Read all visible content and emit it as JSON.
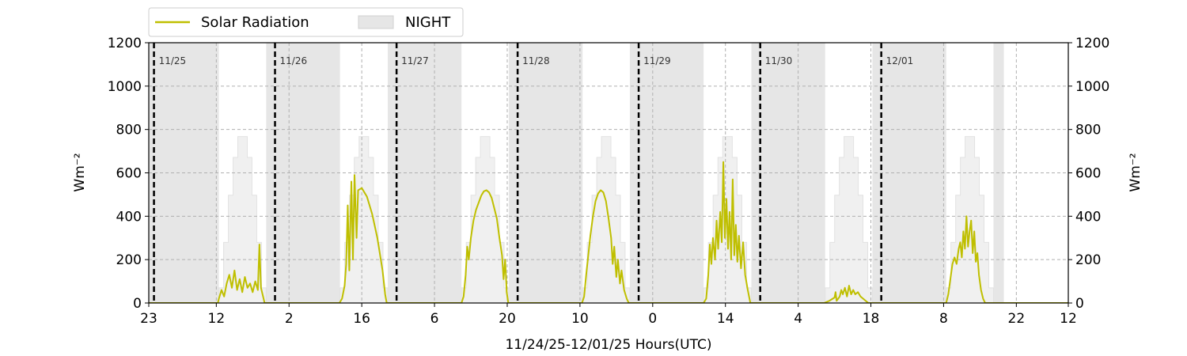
{
  "chart_data": {
    "type": "line",
    "xlabel": "11/24/25-12/01/25  Hours(UTC)",
    "ylabel_left": "Wm⁻²",
    "ylabel_right": "Wm⁻²",
    "ylim": [
      0,
      1200
    ],
    "y_ticks": [
      "0",
      "200",
      "400",
      "600",
      "800",
      "1000",
      "1200"
    ],
    "xlim_hours": [
      0,
      177
    ],
    "x_tick_hours": [
      0,
      13,
      27,
      41,
      55,
      69,
      83,
      97,
      111,
      125,
      139,
      153,
      167,
      177
    ],
    "x_tick_labels": [
      "23",
      "12",
      "2",
      "16",
      "6",
      "20",
      "10",
      "0",
      "14",
      "4",
      "18",
      "8",
      "22",
      "12"
    ],
    "grid": "dashed",
    "legend": {
      "placement": "top-left-outside",
      "solar_label": "Solar Radiation",
      "night_label": "NIGHT"
    },
    "colors": {
      "solar": "#bfbf00",
      "night": "#e6e6e6",
      "clear_sky": "#f0f0f0",
      "day_marker": "#000000"
    },
    "day_markers": [
      {
        "hour": 1,
        "label": "11/25"
      },
      {
        "hour": 24.3,
        "label": "11/26"
      },
      {
        "hour": 47.7,
        "label": "11/27"
      },
      {
        "hour": 71,
        "label": "11/28"
      },
      {
        "hour": 94.3,
        "label": "11/29"
      },
      {
        "hour": 117.7,
        "label": "11/30"
      },
      {
        "hour": 141,
        "label": "12/01"
      }
    ],
    "night_periods": [
      [
        0,
        13.5
      ],
      [
        22.6,
        36.8
      ],
      [
        46,
        60.2
      ],
      [
        69.3,
        83.5
      ],
      [
        92.6,
        106.8
      ],
      [
        116,
        130.2
      ],
      [
        139.3,
        153.5
      ],
      [
        162.6,
        164.6
      ]
    ],
    "clear_sky_envelope": [
      {
        "start": 13.5,
        "end": 22.6,
        "peak": 780
      },
      {
        "start": 36.8,
        "end": 46,
        "peak": 780
      },
      {
        "start": 60.2,
        "end": 69.3,
        "peak": 780
      },
      {
        "start": 83.5,
        "end": 92.6,
        "peak": 780
      },
      {
        "start": 106.8,
        "end": 116,
        "peak": 780
      },
      {
        "start": 130.2,
        "end": 139.3,
        "peak": 780
      },
      {
        "start": 153.5,
        "end": 162.6,
        "peak": 780
      }
    ],
    "series": [
      {
        "name": "Solar Radiation",
        "points": [
          [
            0,
            0
          ],
          [
            13.3,
            0
          ],
          [
            13.5,
            20
          ],
          [
            14,
            60
          ],
          [
            14.5,
            30
          ],
          [
            15,
            90
          ],
          [
            15.5,
            130
          ],
          [
            16,
            70
          ],
          [
            16.5,
            150
          ],
          [
            17,
            60
          ],
          [
            17.5,
            110
          ],
          [
            18,
            50
          ],
          [
            18.5,
            120
          ],
          [
            19,
            70
          ],
          [
            19.5,
            90
          ],
          [
            20,
            50
          ],
          [
            20.5,
            100
          ],
          [
            21,
            60
          ],
          [
            21.3,
            270
          ],
          [
            21.6,
            70
          ],
          [
            22,
            30
          ],
          [
            22.3,
            0
          ],
          [
            36.7,
            0
          ],
          [
            37.2,
            20
          ],
          [
            37.7,
            80
          ],
          [
            38,
            180
          ],
          [
            38.3,
            450
          ],
          [
            38.6,
            150
          ],
          [
            39,
            560
          ],
          [
            39.3,
            200
          ],
          [
            39.6,
            590
          ],
          [
            40,
            300
          ],
          [
            40.3,
            520
          ],
          [
            41,
            530
          ],
          [
            42,
            490
          ],
          [
            43,
            410
          ],
          [
            44,
            300
          ],
          [
            45,
            150
          ],
          [
            45.5,
            40
          ],
          [
            45.8,
            0
          ],
          [
            60.2,
            0
          ],
          [
            60.6,
            30
          ],
          [
            61,
            130
          ],
          [
            61.3,
            260
          ],
          [
            61.6,
            200
          ],
          [
            62,
            300
          ],
          [
            62.5,
            380
          ],
          [
            63,
            430
          ],
          [
            64,
            495
          ],
          [
            64.5,
            515
          ],
          [
            65,
            520
          ],
          [
            65.5,
            510
          ],
          [
            66,
            485
          ],
          [
            67,
            390
          ],
          [
            67.5,
            300
          ],
          [
            68,
            220
          ],
          [
            68.3,
            110
          ],
          [
            68.6,
            200
          ],
          [
            68.9,
            50
          ],
          [
            69.2,
            0
          ],
          [
            83.4,
            0
          ],
          [
            83.8,
            30
          ],
          [
            84.2,
            130
          ],
          [
            84.6,
            220
          ],
          [
            85,
            310
          ],
          [
            85.5,
            400
          ],
          [
            86,
            470
          ],
          [
            86.5,
            505
          ],
          [
            87,
            520
          ],
          [
            87.5,
            510
          ],
          [
            88,
            470
          ],
          [
            88.5,
            390
          ],
          [
            89,
            300
          ],
          [
            89.3,
            180
          ],
          [
            89.6,
            260
          ],
          [
            90,
            120
          ],
          [
            90.3,
            200
          ],
          [
            90.7,
            90
          ],
          [
            91,
            150
          ],
          [
            91.5,
            60
          ],
          [
            92,
            20
          ],
          [
            92.4,
            0
          ],
          [
            106.8,
            0
          ],
          [
            107.3,
            20
          ],
          [
            107.7,
            130
          ],
          [
            108,
            270
          ],
          [
            108.3,
            180
          ],
          [
            108.6,
            300
          ],
          [
            109,
            200
          ],
          [
            109.3,
            380
          ],
          [
            109.6,
            250
          ],
          [
            110,
            420
          ],
          [
            110.3,
            280
          ],
          [
            110.6,
            650
          ],
          [
            110.9,
            300
          ],
          [
            111.2,
            480
          ],
          [
            111.5,
            250
          ],
          [
            111.8,
            420
          ],
          [
            112.1,
            200
          ],
          [
            112.4,
            570
          ],
          [
            112.7,
            220
          ],
          [
            113,
            360
          ],
          [
            113.3,
            190
          ],
          [
            113.6,
            310
          ],
          [
            114,
            160
          ],
          [
            114.4,
            280
          ],
          [
            114.8,
            130
          ],
          [
            115.3,
            60
          ],
          [
            115.8,
            0
          ],
          [
            130,
            0
          ],
          [
            131,
            10
          ],
          [
            132,
            25
          ],
          [
            132.2,
            50
          ],
          [
            132.4,
            10
          ],
          [
            133,
            30
          ],
          [
            133.3,
            60
          ],
          [
            133.6,
            40
          ],
          [
            134,
            70
          ],
          [
            134.4,
            30
          ],
          [
            134.8,
            80
          ],
          [
            135.2,
            40
          ],
          [
            135.6,
            60
          ],
          [
            136,
            40
          ],
          [
            136.5,
            50
          ],
          [
            137,
            30
          ],
          [
            137.5,
            20
          ],
          [
            138,
            10
          ],
          [
            138.5,
            0
          ],
          [
            153.5,
            0
          ],
          [
            153.9,
            40
          ],
          [
            154.3,
            110
          ],
          [
            154.7,
            180
          ],
          [
            155.1,
            210
          ],
          [
            155.5,
            180
          ],
          [
            155.9,
            250
          ],
          [
            156.2,
            280
          ],
          [
            156.5,
            210
          ],
          [
            156.8,
            330
          ],
          [
            157.1,
            250
          ],
          [
            157.4,
            400
          ],
          [
            157.7,
            260
          ],
          [
            158,
            330
          ],
          [
            158.3,
            380
          ],
          [
            158.6,
            230
          ],
          [
            158.9,
            330
          ],
          [
            159.2,
            190
          ],
          [
            159.5,
            230
          ],
          [
            159.8,
            130
          ],
          [
            160.2,
            60
          ],
          [
            160.6,
            20
          ],
          [
            161,
            0
          ],
          [
            177,
            0
          ]
        ]
      }
    ]
  }
}
